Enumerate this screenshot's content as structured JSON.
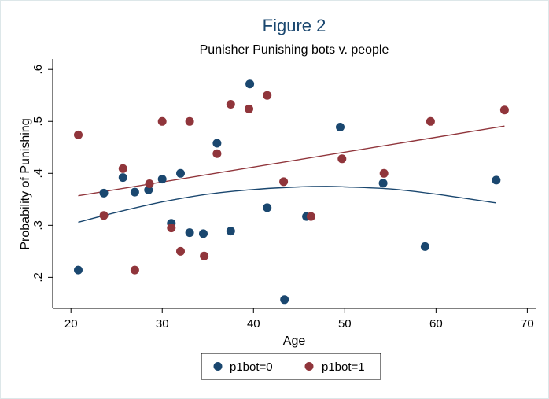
{
  "chart_data": {
    "type": "scatter",
    "title": "Figure 2",
    "subtitle": "Punisher Punishing bots v. people",
    "xlabel": "Age",
    "ylabel": "Probability of Punishing",
    "xlim": [
      18,
      71
    ],
    "ylim": [
      0.14,
      0.62
    ],
    "xticks": [
      20,
      30,
      40,
      50,
      60,
      70
    ],
    "yticks": [
      0.2,
      0.3,
      0.4,
      0.5,
      0.6
    ],
    "xtick_labels": [
      "20",
      "30",
      "40",
      "50",
      "60",
      "70"
    ],
    "ytick_labels": [
      ".2",
      ".3",
      ".4",
      ".5",
      ".6"
    ],
    "grid": false,
    "legend_position": "bottom",
    "series": [
      {
        "name": "p1bot=0",
        "color": "#1a476f",
        "points": [
          [
            20.8,
            0.214
          ],
          [
            23.6,
            0.362
          ],
          [
            25.7,
            0.392
          ],
          [
            27.0,
            0.364
          ],
          [
            28.5,
            0.368
          ],
          [
            30.0,
            0.389
          ],
          [
            31.0,
            0.304
          ],
          [
            32.0,
            0.4
          ],
          [
            33.0,
            0.286
          ],
          [
            34.5,
            0.284
          ],
          [
            36.0,
            0.458
          ],
          [
            37.5,
            0.289
          ],
          [
            39.6,
            0.572
          ],
          [
            41.5,
            0.334
          ],
          [
            43.4,
            0.157
          ],
          [
            45.8,
            0.317
          ],
          [
            49.5,
            0.489
          ],
          [
            54.2,
            0.381
          ],
          [
            58.8,
            0.259
          ],
          [
            66.6,
            0.387
          ]
        ],
        "fit": {
          "type": "quadratic",
          "x": [
            20.8,
            25,
            30,
            35,
            40,
            45,
            48,
            50,
            55,
            60,
            66.6
          ],
          "y": [
            0.306,
            0.325,
            0.345,
            0.36,
            0.369,
            0.374,
            0.375,
            0.374,
            0.37,
            0.36,
            0.343
          ]
        }
      },
      {
        "name": "p1bot=1",
        "color": "#90353b",
        "points": [
          [
            20.8,
            0.474
          ],
          [
            23.6,
            0.319
          ],
          [
            25.7,
            0.409
          ],
          [
            27.0,
            0.214
          ],
          [
            28.6,
            0.38
          ],
          [
            30.0,
            0.5
          ],
          [
            31.0,
            0.295
          ],
          [
            32.0,
            0.25
          ],
          [
            33.0,
            0.5
          ],
          [
            34.6,
            0.241
          ],
          [
            36.0,
            0.438
          ],
          [
            37.5,
            0.533
          ],
          [
            39.5,
            0.524
          ],
          [
            41.5,
            0.55
          ],
          [
            43.3,
            0.384
          ],
          [
            46.3,
            0.317
          ],
          [
            49.7,
            0.428
          ],
          [
            54.3,
            0.4
          ],
          [
            59.4,
            0.5
          ],
          [
            67.5,
            0.522
          ]
        ],
        "fit": {
          "type": "linear",
          "x": [
            20.8,
            67.5
          ],
          "y": [
            0.357,
            0.491
          ]
        }
      }
    ]
  }
}
